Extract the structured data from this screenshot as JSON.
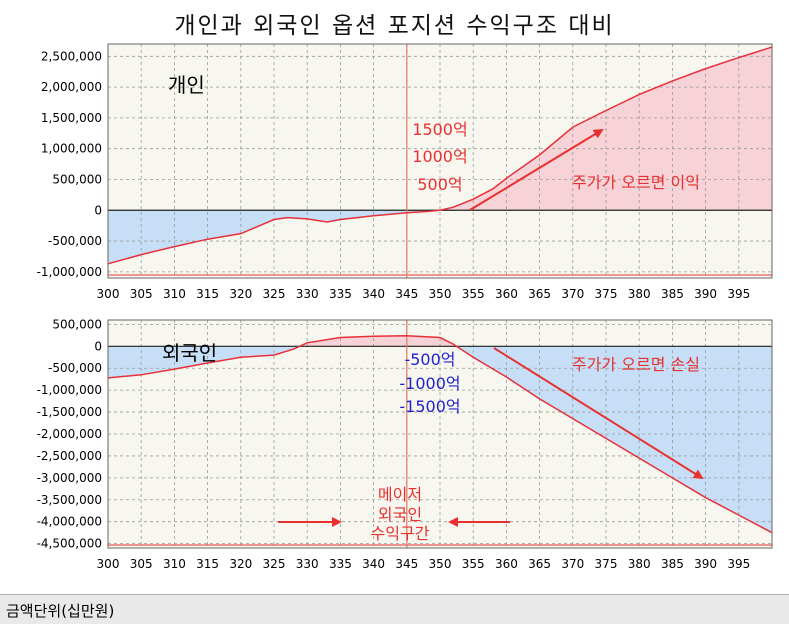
{
  "title": "개인과 외국인 옵션 포지션 수익구조 대비",
  "footer": {
    "unit_label": "금액단위(십만원)"
  },
  "colors": {
    "profit_fill": "#f7d2d6",
    "loss_fill": "#c6dff6",
    "curve": "#e8303a",
    "vline": "#e07a5f",
    "annot_red": "#e83030",
    "annot_blue": "#2222cc",
    "plot_bg": "#f7f7ef"
  },
  "chart_data": [
    {
      "type": "area",
      "panel": "top",
      "title": "",
      "series_label": "개인",
      "xlim": [
        300,
        400
      ],
      "ylim": [
        -1100000,
        2700000
      ],
      "x_ticks": [
        300,
        305,
        310,
        315,
        320,
        325,
        330,
        335,
        340,
        345,
        350,
        355,
        360,
        365,
        370,
        375,
        380,
        385,
        390,
        395
      ],
      "y_ticks": [
        2500000,
        2000000,
        1500000,
        1000000,
        500000,
        0,
        -500000,
        -1000000
      ],
      "y_tick_labels": [
        "2,500,000",
        "2,000,000",
        "1,500,000",
        "1,000,000",
        "500,000",
        "0",
        "-500,000",
        "-1,000,000"
      ],
      "vline_x": 345,
      "x": [
        300,
        305,
        310,
        315,
        320,
        325,
        327,
        330,
        333,
        335,
        340,
        345,
        348,
        350,
        352,
        355,
        358,
        360,
        365,
        370,
        375,
        380,
        385,
        390,
        395,
        400
      ],
      "y": [
        -870000,
        -720000,
        -590000,
        -470000,
        -380000,
        -150000,
        -120000,
        -140000,
        -190000,
        -150000,
        -90000,
        -40000,
        -20000,
        0,
        50000,
        180000,
        350000,
        520000,
        900000,
        1350000,
        1620000,
        1880000,
        2100000,
        2300000,
        2480000,
        2650000
      ],
      "annotations": {
        "levels": [
          "1500억",
          "1000억",
          "500억"
        ],
        "trend": "주가가 오르면 이익"
      }
    },
    {
      "type": "area",
      "panel": "bottom",
      "title": "",
      "series_label": "외국인",
      "xlim": [
        300,
        400
      ],
      "ylim": [
        -4600000,
        600000
      ],
      "x_ticks": [
        300,
        305,
        310,
        315,
        320,
        325,
        330,
        335,
        340,
        345,
        350,
        355,
        360,
        365,
        370,
        375,
        380,
        385,
        390,
        395
      ],
      "y_ticks": [
        500000,
        0,
        -500000,
        -1000000,
        -1500000,
        -2000000,
        -2500000,
        -3000000,
        -3500000,
        -4000000,
        -4500000
      ],
      "y_tick_labels": [
        "500,000",
        "0",
        "-500,000",
        "-1,000,000",
        "-1,500,000",
        "-2,000,000",
        "-2,500,000",
        "-3,000,000",
        "-3,500,000",
        "-4,000,000",
        "-4,500,000"
      ],
      "vline_x": 345,
      "x": [
        300,
        305,
        310,
        315,
        320,
        325,
        328,
        330,
        335,
        340,
        345,
        350,
        352,
        355,
        360,
        365,
        370,
        375,
        380,
        385,
        390,
        395,
        400
      ],
      "y": [
        -720000,
        -650000,
        -520000,
        -380000,
        -250000,
        -200000,
        -60000,
        80000,
        200000,
        230000,
        240000,
        200000,
        50000,
        -250000,
        -700000,
        -1200000,
        -1650000,
        -2100000,
        -2550000,
        -3000000,
        -3450000,
        -3850000,
        -4250000
      ],
      "annotations": {
        "levels": [
          "-500억",
          "-1000억",
          "-1500억"
        ],
        "trend": "주가가 오르면 손실",
        "zone_label": [
          "메이저",
          "외국인",
          "수익구간"
        ]
      }
    }
  ]
}
